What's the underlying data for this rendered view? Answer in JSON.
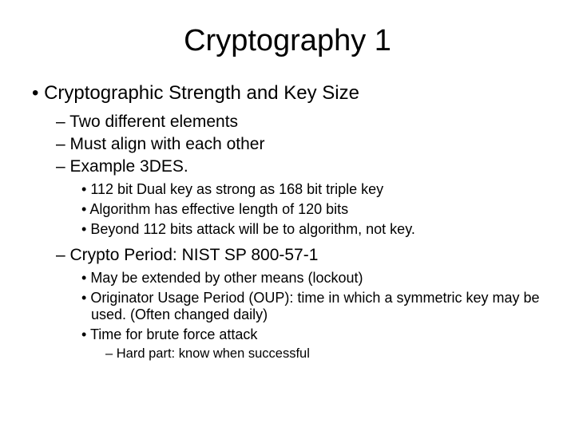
{
  "title": "Cryptography 1",
  "bullet1": "Cryptographic Strength and Key Size",
  "sub1": "Two different elements",
  "sub2": "Must align with each other",
  "sub3": "Example 3DES.",
  "sub3_1": "112 bit Dual key as strong as 168 bit triple key",
  "sub3_2": "Algorithm has effective length of 120 bits",
  "sub3_3": "Beyond 112 bits attack will be to algorithm, not key.",
  "sub4": "Crypto Period: NIST SP 800-57-1",
  "sub4_1": "May be extended by other means (lockout)",
  "sub4_2": "Originator Usage Period (OUP): time in which a symmetric key may be used. (Often changed daily)",
  "sub4_3": "Time for brute force attack",
  "sub4_3_1": "Hard part: know when successful"
}
